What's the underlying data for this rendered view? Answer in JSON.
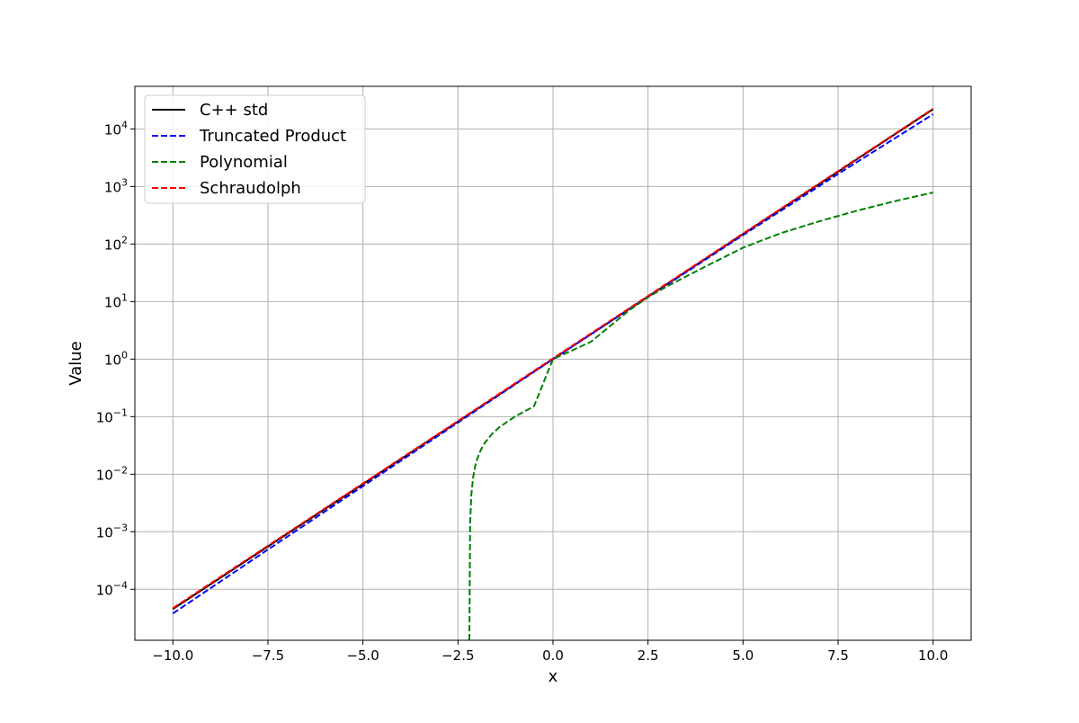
{
  "chart_data": {
    "type": "line",
    "title": "",
    "xlabel": "x",
    "ylabel": "Value",
    "xlim": [
      -11.0,
      11.0
    ],
    "ylim": [
      1.3e-05,
      55000.0
    ],
    "yscale": "log",
    "grid": true,
    "legend_position": "top-left",
    "x_ticks": [
      -10.0,
      -7.5,
      -5.0,
      -2.5,
      0.0,
      2.5,
      5.0,
      7.5,
      10.0
    ],
    "x_tick_labels": [
      "−10.0",
      "−7.5",
      "−5.0",
      "−2.5",
      "0.0",
      "2.5",
      "5.0",
      "7.5",
      "10.0"
    ],
    "y_ticks": [
      {
        "value": 0.0001,
        "base": "10",
        "exp": "−4"
      },
      {
        "value": 0.001,
        "base": "10",
        "exp": "−3"
      },
      {
        "value": 0.01,
        "base": "10",
        "exp": "−2"
      },
      {
        "value": 0.1,
        "base": "10",
        "exp": "−1"
      },
      {
        "value": 1,
        "base": "10",
        "exp": "0"
      },
      {
        "value": 10,
        "base": "10",
        "exp": "1"
      },
      {
        "value": 100,
        "base": "10",
        "exp": "2"
      },
      {
        "value": 1000,
        "base": "10",
        "exp": "3"
      },
      {
        "value": 10000,
        "base": "10",
        "exp": "4"
      }
    ],
    "series": [
      {
        "name": "C++ std",
        "color": "#000000",
        "dash": "solid",
        "x": [
          -10,
          -7.5,
          -5,
          -2.5,
          0,
          2.5,
          5,
          7.5,
          10
        ],
        "y": [
          4.54e-05,
          0.000553,
          0.00674,
          0.0821,
          1.0,
          12.18,
          148.4,
          1808,
          22026
        ]
      },
      {
        "name": "Truncated Product",
        "color": "#0000ff",
        "dash": "dashed",
        "x": [
          -10,
          -7.5,
          -5,
          -2.5,
          0,
          2.5,
          5,
          7.5,
          10
        ],
        "y": [
          3.8e-05,
          0.00049,
          0.0062,
          0.079,
          1.0,
          12.0,
          143,
          1650,
          18000
        ]
      },
      {
        "name": "Polynomial",
        "color": "#008000",
        "dash": "dashed",
        "x": [
          -2.2,
          -2.18,
          -2.15,
          -2.1,
          -2.05,
          -2.0,
          -1.9,
          -1.8,
          -1.6,
          -1.4,
          -1.0,
          -0.5,
          0,
          1,
          2,
          2.5,
          3,
          4,
          5,
          6,
          7,
          8,
          9,
          10
        ],
        "y": [
          1.3e-05,
          0.00138,
          0.00425,
          0.00893,
          0.0135,
          0.0179,
          0.0264,
          0.0346,
          0.0505,
          0.0664,
          0.1005,
          0.1513,
          1.0,
          2.0,
          7.0,
          11.9,
          18.4,
          40.3,
          86.4,
          154.7,
          247.6,
          380.1,
          557.3,
          784.1
        ],
        "y_note_removed": true
      },
      {
        "name": "Schraudolph",
        "color": "#ff0000",
        "dash": "dashed",
        "x": [
          -10,
          -7.5,
          -5,
          -2.5,
          0,
          2.5,
          5,
          7.5,
          10
        ],
        "y": [
          4.7e-05,
          0.00057,
          0.0069,
          0.084,
          1.03,
          12.5,
          152,
          1850,
          22500
        ]
      }
    ]
  }
}
